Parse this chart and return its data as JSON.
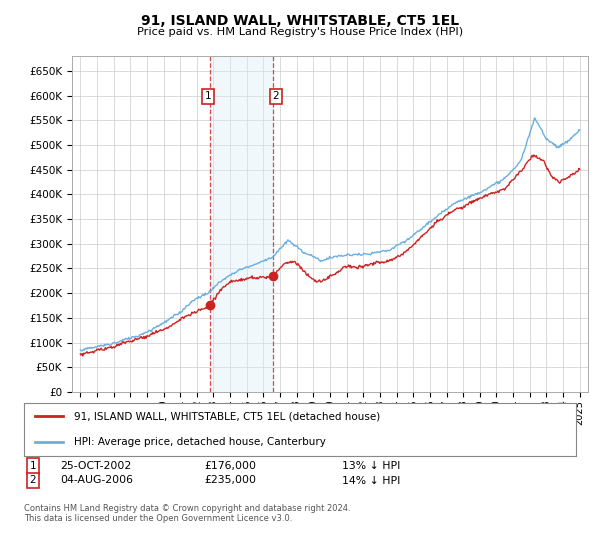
{
  "title": "91, ISLAND WALL, WHITSTABLE, CT5 1EL",
  "subtitle": "Price paid vs. HM Land Registry's House Price Index (HPI)",
  "legend_line1": "91, ISLAND WALL, WHITSTABLE, CT5 1EL (detached house)",
  "legend_line2": "HPI: Average price, detached house, Canterbury",
  "footer": "Contains HM Land Registry data © Crown copyright and database right 2024.\nThis data is licensed under the Open Government Licence v3.0.",
  "sale1_date": "25-OCT-2002",
  "sale1_price": "£176,000",
  "sale1_hpi": "13% ↓ HPI",
  "sale2_date": "04-AUG-2006",
  "sale2_price": "£235,000",
  "sale2_hpi": "14% ↓ HPI",
  "hpi_color": "#6aafe0",
  "price_color": "#cc2222",
  "shade_color": "#ddeef8",
  "grid_color": "#cccccc",
  "bg_color": "#ffffff",
  "ylim": [
    0,
    680000
  ],
  "yticks": [
    0,
    50000,
    100000,
    150000,
    200000,
    250000,
    300000,
    350000,
    400000,
    450000,
    500000,
    550000,
    600000,
    650000
  ],
  "ytick_labels": [
    "£0",
    "£50K",
    "£100K",
    "£150K",
    "£200K",
    "£250K",
    "£300K",
    "£350K",
    "£400K",
    "£450K",
    "£500K",
    "£550K",
    "£600K",
    "£650K"
  ],
  "sale1_x": 2002.82,
  "sale1_y": 176000,
  "sale2_x": 2006.59,
  "sale2_y": 235000,
  "sale1_vline_x": 2002.82,
  "sale2_vline_x": 2006.59,
  "shade_x1": 2002.82,
  "shade_x2": 2006.59,
  "xlim_left": 1994.5,
  "xlim_right": 2025.5
}
